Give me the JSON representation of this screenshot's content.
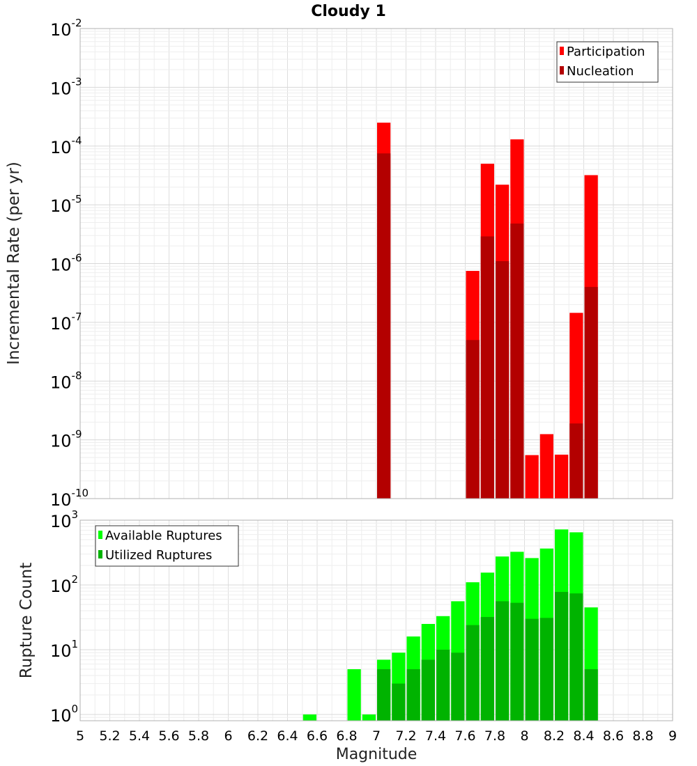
{
  "chart_data": [
    {
      "type": "bar",
      "title": "Cloudy 1",
      "xlabel": "",
      "ylabel": "Incremental Rate (per yr)",
      "y_scale": "log",
      "xlim": [
        5,
        9
      ],
      "ylim": [
        1e-10,
        0.01
      ],
      "y_ticks": [
        {
          "base": "10",
          "exp": "-10"
        },
        {
          "base": "10",
          "exp": "-9"
        },
        {
          "base": "10",
          "exp": "-8"
        },
        {
          "base": "10",
          "exp": "-7"
        },
        {
          "base": "10",
          "exp": "-6"
        },
        {
          "base": "10",
          "exp": "-5"
        },
        {
          "base": "10",
          "exp": "-4"
        },
        {
          "base": "10",
          "exp": "-3"
        },
        {
          "base": "10",
          "exp": "-2"
        }
      ],
      "grid": true,
      "legend_position": "top-right",
      "bar_width": 0.1,
      "series": [
        {
          "name": "Participation",
          "color": "#ff0000",
          "x": [
            7.05,
            7.65,
            7.75,
            7.85,
            7.95,
            8.05,
            8.15,
            8.25,
            8.35,
            8.45
          ],
          "values": [
            0.00025,
            7.5e-07,
            5e-05,
            2.2e-05,
            0.00013,
            5.5e-10,
            1.25e-09,
            5.6e-10,
            1.45e-07,
            3.2e-05
          ]
        },
        {
          "name": "Nucleation",
          "color": "#b30000",
          "x": [
            7.05,
            7.65,
            7.75,
            7.85,
            7.95,
            8.35,
            8.45
          ],
          "values": [
            7.5e-05,
            5e-08,
            2.9e-06,
            1.1e-06,
            4.8e-06,
            1.9e-09,
            4e-07
          ]
        }
      ]
    },
    {
      "type": "bar",
      "title": "",
      "xlabel": "Magnitude",
      "ylabel": "Rupture Count",
      "y_scale": "log",
      "xlim": [
        5,
        9
      ],
      "ylim": [
        0.8,
        1000
      ],
      "x_ticks": [
        "5",
        "5.2",
        "5.4",
        "5.6",
        "5.8",
        "6",
        "6.2",
        "6.4",
        "6.6",
        "6.8",
        "7",
        "7.2",
        "7.4",
        "7.6",
        "7.8",
        "8",
        "8.2",
        "8.4",
        "8.6",
        "8.8",
        "9"
      ],
      "y_ticks": [
        {
          "base": "10",
          "exp": "0"
        },
        {
          "base": "10",
          "exp": "1"
        },
        {
          "base": "10",
          "exp": "2"
        },
        {
          "base": "10",
          "exp": "3"
        }
      ],
      "grid": true,
      "legend_position": "top-left",
      "bar_width": 0.1,
      "series": [
        {
          "name": "Available Ruptures",
          "color": "#00ff00",
          "x": [
            6.55,
            6.85,
            6.95,
            7.05,
            7.15,
            7.25,
            7.35,
            7.45,
            7.55,
            7.65,
            7.75,
            7.85,
            7.95,
            8.05,
            8.15,
            8.25,
            8.35,
            8.45
          ],
          "values": [
            1,
            5,
            1,
            7,
            9,
            16,
            25,
            33,
            56,
            110,
            155,
            275,
            325,
            260,
            365,
            720,
            650,
            45
          ]
        },
        {
          "name": "Utilized Ruptures",
          "color": "#00b300",
          "x": [
            7.05,
            7.15,
            7.25,
            7.35,
            7.45,
            7.55,
            7.65,
            7.75,
            7.85,
            7.95,
            8.05,
            8.15,
            8.25,
            8.35,
            8.45
          ],
          "values": [
            5,
            3,
            5,
            7,
            10,
            9,
            24,
            32,
            56,
            53,
            30,
            31,
            78,
            74,
            5
          ]
        }
      ]
    }
  ]
}
